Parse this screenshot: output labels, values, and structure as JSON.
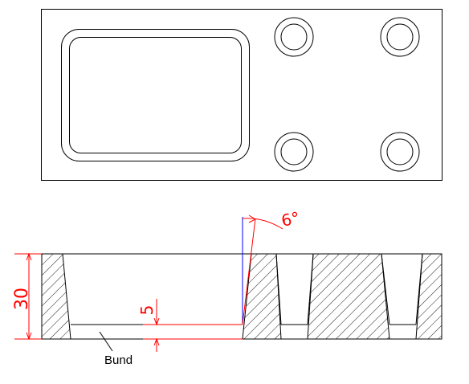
{
  "dimensions": {
    "height": "30",
    "bund_height": "5",
    "angle": "6°"
  },
  "labels": {
    "bund": "Bund"
  },
  "colors": {
    "outline": "#000000",
    "dimension": "#ff0000",
    "reference": "#0000ff"
  }
}
